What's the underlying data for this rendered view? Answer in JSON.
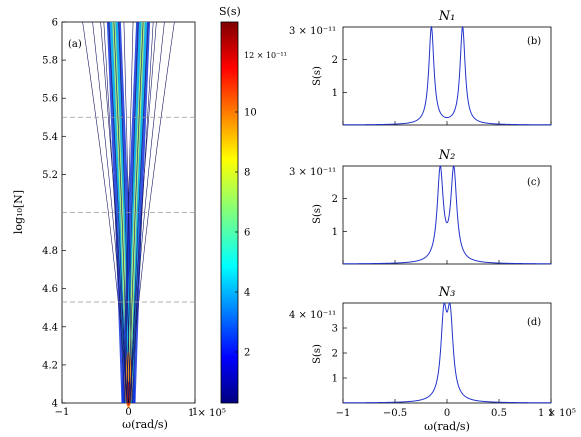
{
  "colors": {
    "curve": "#2233cc",
    "axis": "#000000",
    "dash": "#999999"
  },
  "chart_data": [
    {
      "id": "a",
      "type": "heatmap",
      "panel_label": "(a)",
      "xlabel": "ω(rad/s)",
      "ylabel": "log₁₀[N]",
      "x_multiplier": "1 × 10⁵",
      "xlim": [
        -1,
        1
      ],
      "ylim": [
        4,
        6
      ],
      "xticks": [
        {
          "v": -1,
          "t": "−1"
        },
        {
          "v": 0,
          "t": "0"
        },
        {
          "v": 1,
          "t": "1"
        }
      ],
      "yticks": [
        {
          "v": 4.0,
          "t": "4"
        },
        {
          "v": 4.2,
          "t": "4.2"
        },
        {
          "v": 4.4,
          "t": "4.4"
        },
        {
          "v": 4.6,
          "t": "4.6"
        },
        {
          "v": 4.8,
          "t": "4.8"
        },
        {
          "v": 5.2,
          "t": "5.2"
        },
        {
          "v": 5.4,
          "t": "5.4"
        },
        {
          "v": 5.6,
          "t": "5.6"
        },
        {
          "v": 5.8,
          "t": "5.8"
        },
        {
          "v": 6.0,
          "t": "6"
        }
      ],
      "dashed_lines_y": [
        4.53,
        5.0,
        5.5
      ],
      "contour_offsets": [
        -0.9,
        -0.45,
        0.0,
        0.45,
        0.9
      ],
      "ridges": [
        {
          "logN": 4.0,
          "omega": 0.0
        },
        {
          "logN": 4.5,
          "omega": 0.05
        },
        {
          "logN": 5.0,
          "omega": 0.1
        },
        {
          "logN": 5.5,
          "omega": 0.16
        },
        {
          "logN": 6.0,
          "omega": 0.22
        }
      ],
      "colorbar": {
        "title": "S(s)",
        "multiplier": "12 × 10⁻¹¹",
        "range": [
          0.3,
          13
        ],
        "ticks": [
          {
            "v": 2,
            "t": "2"
          },
          {
            "v": 4,
            "t": "4"
          },
          {
            "v": 6,
            "t": "6"
          },
          {
            "v": 8,
            "t": "8"
          },
          {
            "v": 10,
            "t": "10"
          }
        ]
      }
    },
    {
      "id": "b",
      "type": "line",
      "title": "N₁",
      "panel_label": "(b)",
      "ylabel": "S(s)",
      "y_multiplier": "3 × 10⁻¹¹",
      "xlim": [
        -1,
        1
      ],
      "ylim": [
        0,
        3
      ],
      "yticks": [
        {
          "v": 1,
          "t": "1"
        },
        {
          "v": 2,
          "t": "2"
        }
      ],
      "peaks": [
        {
          "x": -0.15,
          "h": 3.0
        },
        {
          "x": 0.15,
          "h": 3.0
        }
      ],
      "width": 0.03
    },
    {
      "id": "c",
      "type": "line",
      "title": "N₂",
      "panel_label": "(c)",
      "ylabel": "S(s)",
      "y_multiplier": "3 × 10⁻¹¹",
      "xlim": [
        -1,
        1
      ],
      "ylim": [
        0,
        3
      ],
      "yticks": [
        {
          "v": 1,
          "t": "1"
        },
        {
          "v": 2,
          "t": "2"
        }
      ],
      "peaks": [
        {
          "x": -0.065,
          "h": 3.0
        },
        {
          "x": 0.065,
          "h": 3.0
        }
      ],
      "width": 0.035
    },
    {
      "id": "d",
      "type": "line",
      "title": "N₃",
      "panel_label": "(d)",
      "ylabel": "S(s)",
      "y_multiplier": "4 × 10⁻¹¹",
      "x_multiplier": "1 × 10⁵",
      "xlabel": "ω(rad/s)",
      "xlim": [
        -1,
        1
      ],
      "ylim": [
        0,
        4
      ],
      "yticks": [
        {
          "v": 1,
          "t": "1"
        },
        {
          "v": 2,
          "t": "2"
        },
        {
          "v": 3,
          "t": "3"
        }
      ],
      "xticks": [
        {
          "v": -1,
          "t": "−1"
        },
        {
          "v": -0.5,
          "t": "−0.5"
        },
        {
          "v": 0,
          "t": "0"
        },
        {
          "v": 0.5,
          "t": "0.5"
        },
        {
          "v": 1,
          "t": "1"
        }
      ],
      "peaks": [
        {
          "x": -0.03,
          "h": 4.0
        },
        {
          "x": 0.03,
          "h": 4.0
        }
      ],
      "width": 0.035
    }
  ]
}
